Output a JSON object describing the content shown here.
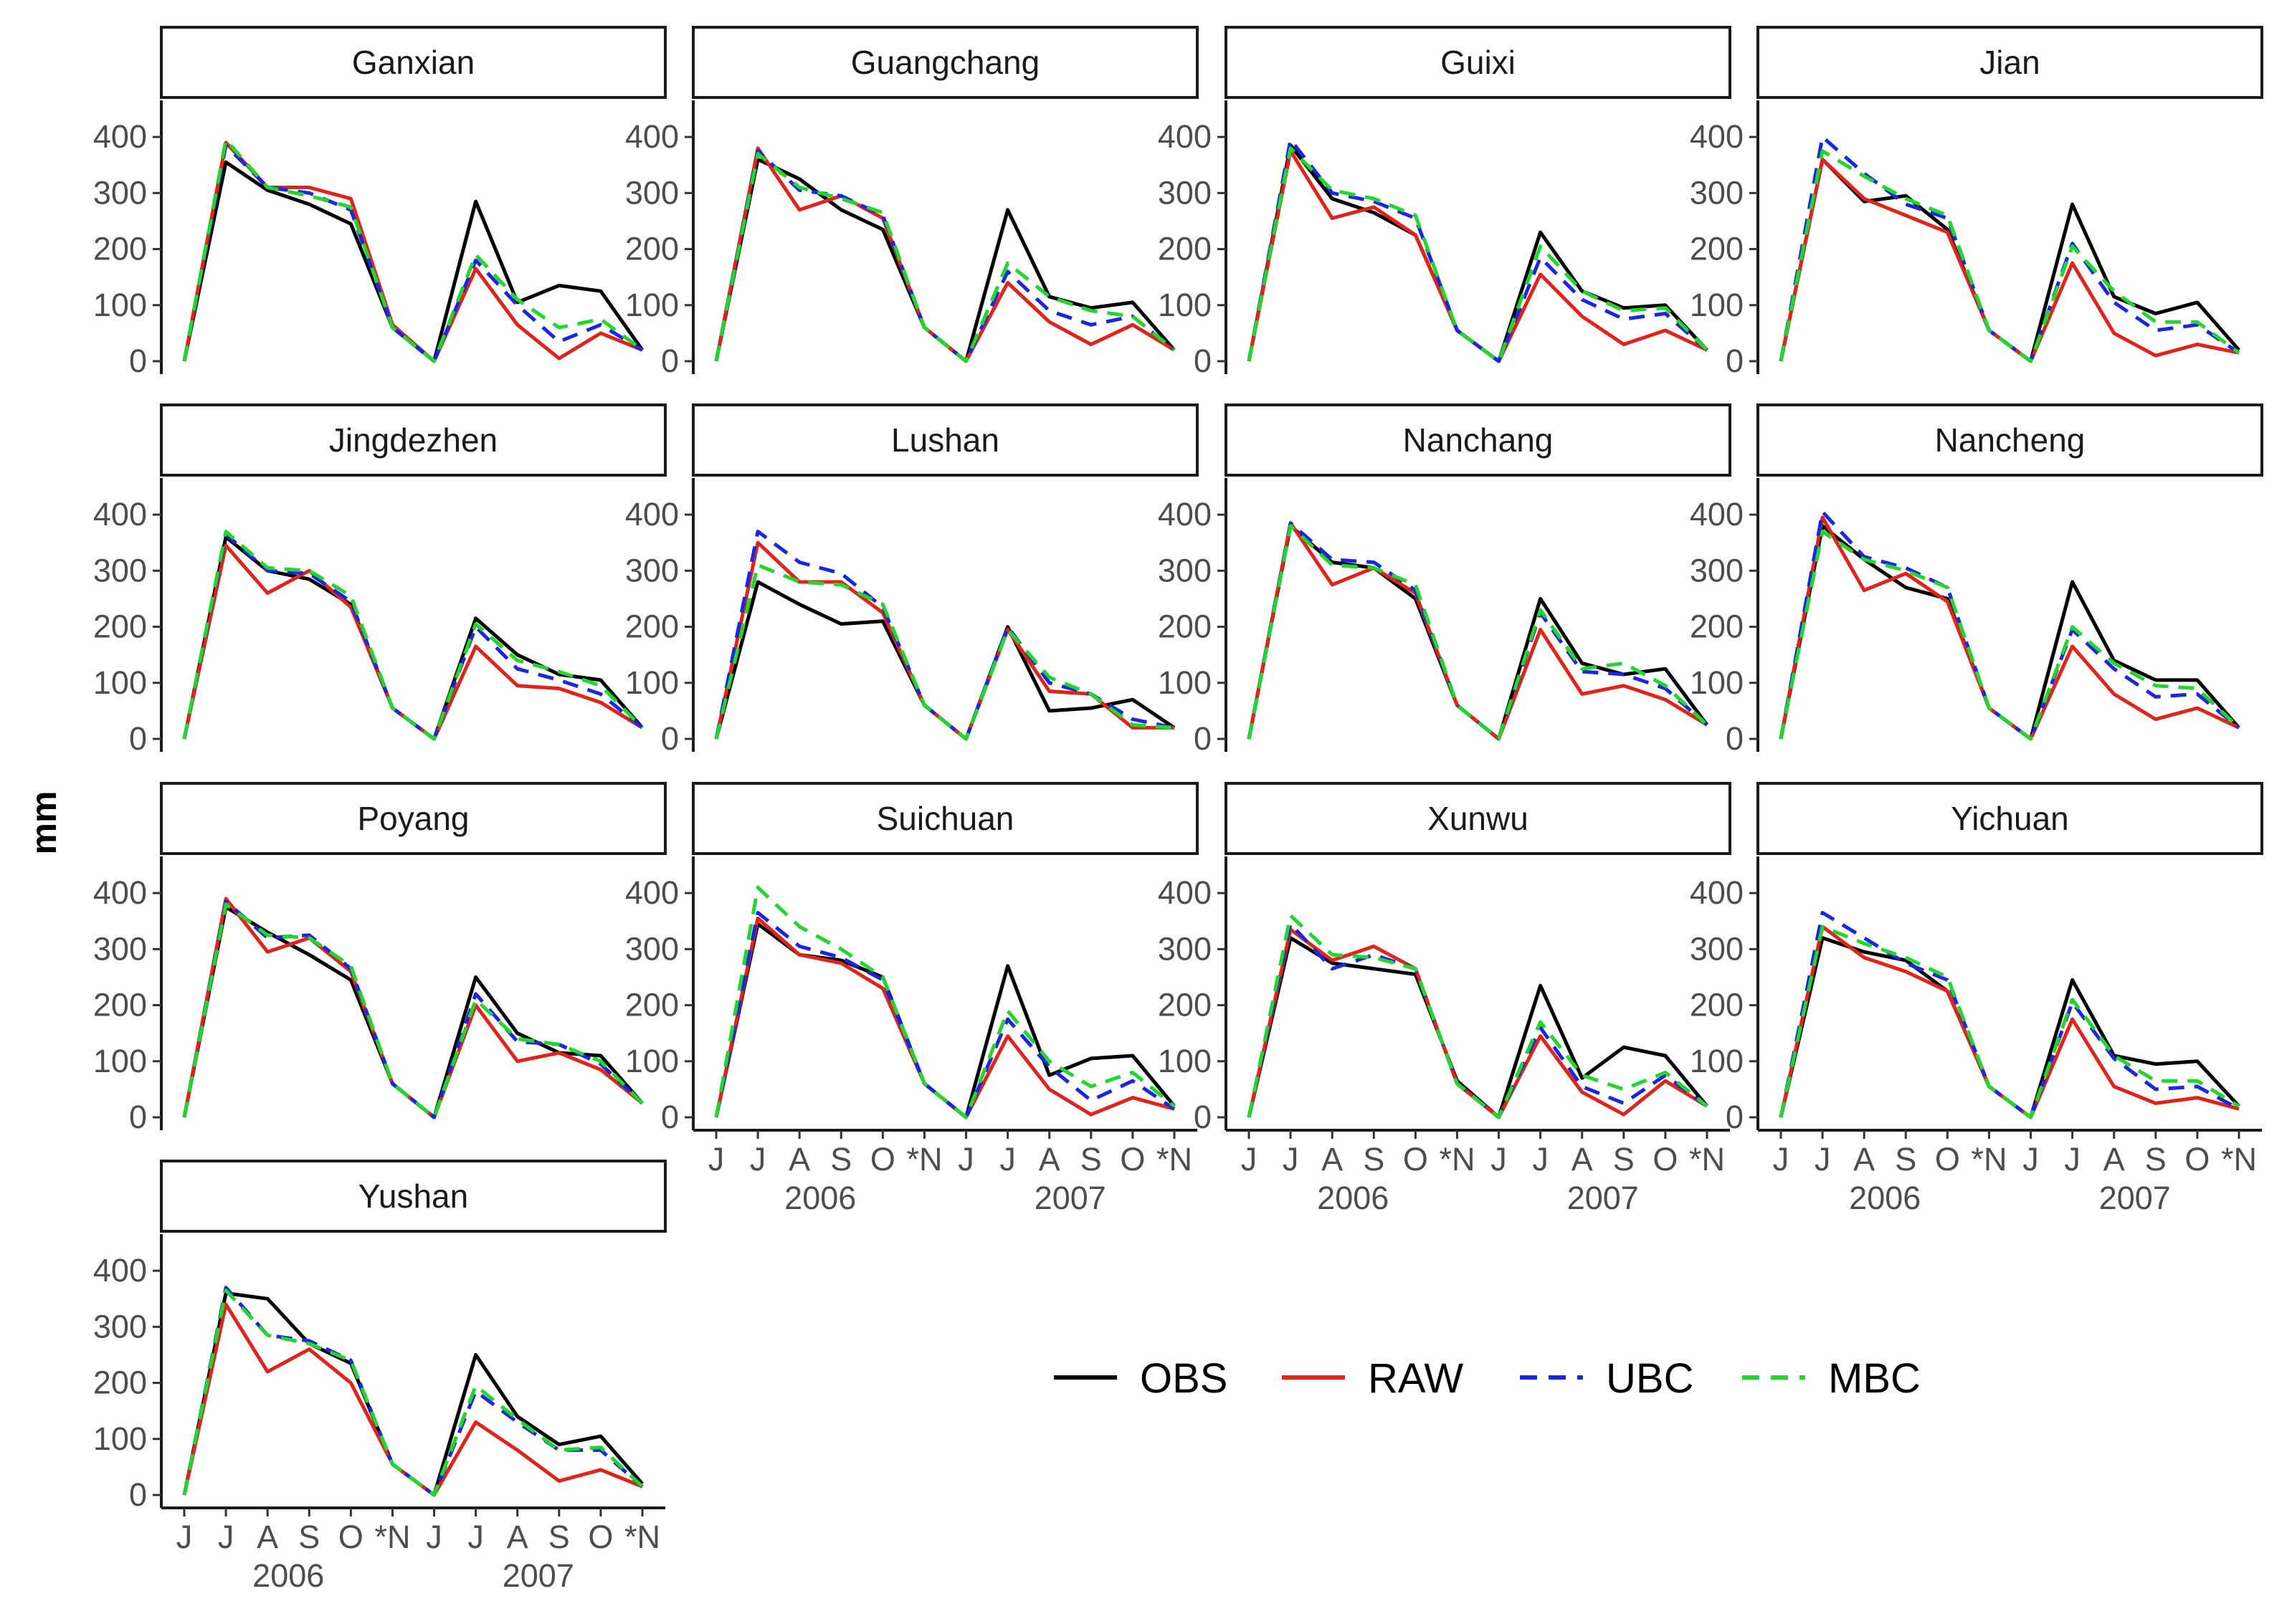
{
  "chart_data": {
    "type": "line",
    "facet": "wrap",
    "ylabel": "mm",
    "ylim": [
      0,
      450
    ],
    "yticks": [
      0,
      100,
      200,
      300,
      400
    ],
    "x_tick_labels": [
      "J",
      "J",
      "A",
      "S",
      "O",
      "*N",
      "J",
      "J",
      "A",
      "S",
      "O",
      "*N"
    ],
    "x_years": [
      "2006",
      "2007"
    ],
    "series_styles": [
      {
        "name": "OBS",
        "color": "#000000",
        "dash": "solid"
      },
      {
        "name": "RAW",
        "color": "#e0241b",
        "dash": "solid"
      },
      {
        "name": "UBC",
        "color": "#1a27e0",
        "dash": "dashed"
      },
      {
        "name": "MBC",
        "color": "#22d62e",
        "dash": "dashed"
      }
    ],
    "legend_position": "bottom-right",
    "panels": [
      {
        "name": "Ganxian",
        "series": {
          "OBS": [
            0,
            355,
            305,
            280,
            245,
            60,
            0,
            285,
            105,
            135,
            125,
            20
          ],
          "RAW": [
            0,
            390,
            310,
            310,
            290,
            65,
            0,
            165,
            65,
            5,
            50,
            20
          ],
          "UBC": [
            0,
            385,
            310,
            300,
            270,
            60,
            0,
            180,
            100,
            35,
            65,
            20
          ],
          "MBC": [
            0,
            395,
            310,
            295,
            275,
            60,
            0,
            190,
            110,
            60,
            75,
            20
          ]
        }
      },
      {
        "name": "Guangchang",
        "series": {
          "OBS": [
            0,
            360,
            325,
            270,
            235,
            60,
            0,
            270,
            115,
            95,
            105,
            20
          ],
          "RAW": [
            0,
            380,
            270,
            295,
            255,
            60,
            0,
            140,
            70,
            30,
            65,
            20
          ],
          "UBC": [
            0,
            375,
            305,
            295,
            260,
            60,
            0,
            160,
            90,
            65,
            80,
            20
          ],
          "MBC": [
            0,
            370,
            310,
            290,
            265,
            60,
            0,
            175,
            115,
            90,
            80,
            20
          ]
        }
      },
      {
        "name": "Guixi",
        "series": {
          "OBS": [
            0,
            385,
            290,
            265,
            225,
            55,
            0,
            230,
            125,
            95,
            100,
            20
          ],
          "RAW": [
            0,
            375,
            255,
            275,
            225,
            55,
            0,
            155,
            80,
            30,
            55,
            20
          ],
          "UBC": [
            0,
            395,
            300,
            285,
            255,
            55,
            0,
            185,
            110,
            75,
            85,
            20
          ],
          "MBC": [
            0,
            380,
            305,
            290,
            260,
            55,
            0,
            205,
            125,
            90,
            95,
            20
          ]
        }
      },
      {
        "name": "Jian",
        "series": {
          "OBS": [
            0,
            360,
            285,
            295,
            235,
            55,
            0,
            280,
            115,
            85,
            105,
            20
          ],
          "RAW": [
            0,
            360,
            290,
            260,
            230,
            55,
            0,
            175,
            50,
            10,
            30,
            15
          ],
          "UBC": [
            0,
            400,
            335,
            280,
            255,
            55,
            0,
            210,
            105,
            55,
            65,
            15
          ],
          "MBC": [
            0,
            375,
            330,
            290,
            260,
            55,
            0,
            205,
            125,
            70,
            70,
            15
          ]
        }
      },
      {
        "name": "Jingdezhen",
        "series": {
          "OBS": [
            0,
            360,
            300,
            285,
            240,
            55,
            0,
            215,
            150,
            115,
            105,
            20
          ],
          "RAW": [
            0,
            345,
            260,
            300,
            235,
            55,
            0,
            165,
            95,
            90,
            65,
            20
          ],
          "UBC": [
            0,
            365,
            300,
            295,
            245,
            55,
            0,
            200,
            125,
            105,
            80,
            20
          ],
          "MBC": [
            0,
            370,
            305,
            300,
            255,
            55,
            0,
            205,
            140,
            120,
            95,
            20
          ]
        }
      },
      {
        "name": "Lushan",
        "series": {
          "OBS": [
            0,
            280,
            240,
            205,
            210,
            60,
            0,
            200,
            50,
            55,
            70,
            20
          ],
          "RAW": [
            0,
            350,
            280,
            280,
            225,
            60,
            0,
            195,
            85,
            80,
            20,
            20
          ],
          "UBC": [
            0,
            370,
            315,
            295,
            235,
            60,
            0,
            200,
            100,
            80,
            35,
            20
          ],
          "MBC": [
            0,
            310,
            280,
            275,
            240,
            60,
            0,
            195,
            110,
            80,
            25,
            20
          ]
        }
      },
      {
        "name": "Nanchang",
        "series": {
          "OBS": [
            0,
            380,
            315,
            305,
            250,
            60,
            0,
            250,
            135,
            115,
            125,
            25
          ],
          "RAW": [
            0,
            385,
            275,
            305,
            260,
            60,
            0,
            195,
            80,
            95,
            70,
            25
          ],
          "UBC": [
            0,
            385,
            320,
            315,
            265,
            60,
            0,
            225,
            120,
            115,
            90,
            25
          ],
          "MBC": [
            0,
            380,
            310,
            305,
            275,
            60,
            0,
            230,
            125,
            135,
            95,
            25
          ]
        }
      },
      {
        "name": "Nancheng",
        "series": {
          "OBS": [
            0,
            380,
            320,
            270,
            250,
            55,
            0,
            280,
            140,
            105,
            105,
            20
          ],
          "RAW": [
            0,
            395,
            265,
            295,
            245,
            55,
            0,
            165,
            80,
            35,
            55,
            20
          ],
          "UBC": [
            0,
            405,
            325,
            305,
            270,
            55,
            0,
            195,
            125,
            75,
            80,
            20
          ],
          "MBC": [
            0,
            370,
            320,
            300,
            270,
            55,
            0,
            200,
            135,
            95,
            90,
            20
          ]
        }
      },
      {
        "name": "Poyang",
        "series": {
          "OBS": [
            0,
            375,
            330,
            290,
            245,
            60,
            0,
            250,
            150,
            115,
            110,
            25
          ],
          "RAW": [
            0,
            390,
            295,
            320,
            260,
            60,
            0,
            200,
            100,
            115,
            85,
            25
          ],
          "UBC": [
            0,
            385,
            320,
            325,
            265,
            60,
            0,
            220,
            135,
            130,
            95,
            25
          ],
          "MBC": [
            0,
            380,
            325,
            320,
            270,
            60,
            0,
            210,
            140,
            130,
            100,
            25
          ]
        }
      },
      {
        "name": "Suichuan",
        "series": {
          "OBS": [
            0,
            345,
            290,
            280,
            250,
            60,
            0,
            270,
            75,
            105,
            110,
            20
          ],
          "RAW": [
            0,
            355,
            290,
            275,
            230,
            60,
            0,
            145,
            50,
            5,
            35,
            15
          ],
          "UBC": [
            0,
            365,
            305,
            285,
            245,
            60,
            0,
            175,
            90,
            30,
            65,
            15
          ],
          "MBC": [
            0,
            410,
            340,
            300,
            250,
            60,
            0,
            190,
            100,
            55,
            80,
            20
          ]
        }
      },
      {
        "name": "Xunwu",
        "series": {
          "OBS": [
            0,
            320,
            275,
            265,
            255,
            65,
            0,
            235,
            70,
            125,
            110,
            20
          ],
          "RAW": [
            0,
            335,
            280,
            305,
            265,
            60,
            0,
            145,
            45,
            5,
            65,
            20
          ],
          "UBC": [
            0,
            345,
            265,
            290,
            265,
            60,
            0,
            160,
            55,
            25,
            75,
            20
          ],
          "MBC": [
            0,
            360,
            290,
            285,
            265,
            60,
            0,
            170,
            75,
            50,
            80,
            20
          ]
        }
      },
      {
        "name": "Yichuan",
        "series": {
          "OBS": [
            0,
            320,
            295,
            280,
            225,
            55,
            0,
            245,
            110,
            95,
            100,
            20
          ],
          "RAW": [
            0,
            340,
            285,
            260,
            225,
            55,
            0,
            175,
            55,
            25,
            35,
            15
          ],
          "UBC": [
            0,
            365,
            320,
            275,
            245,
            55,
            0,
            205,
            105,
            50,
            55,
            15
          ],
          "MBC": [
            0,
            340,
            310,
            285,
            250,
            55,
            0,
            210,
            110,
            65,
            65,
            20
          ]
        }
      },
      {
        "name": "Yushan",
        "series": {
          "OBS": [
            0,
            360,
            350,
            270,
            235,
            55,
            0,
            250,
            140,
            90,
            105,
            20
          ],
          "RAW": [
            0,
            340,
            220,
            260,
            200,
            55,
            0,
            130,
            80,
            25,
            45,
            15
          ],
          "UBC": [
            0,
            370,
            285,
            275,
            240,
            55,
            0,
            185,
            130,
            80,
            80,
            15
          ],
          "MBC": [
            0,
            365,
            285,
            270,
            240,
            55,
            0,
            195,
            135,
            80,
            85,
            15
          ]
        }
      }
    ]
  }
}
